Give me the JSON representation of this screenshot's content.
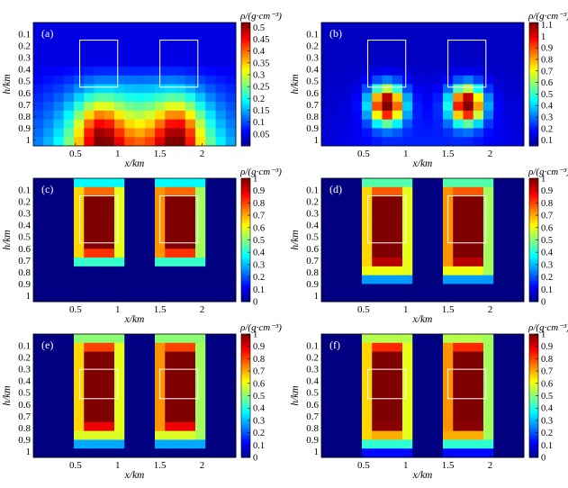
{
  "figure": {
    "colormap": "jet",
    "background": "#ffffff",
    "box_color": "#ffffff"
  },
  "chart_data": [
    {
      "panel": "(a)",
      "type": "heatmap",
      "xlabel": "x/km",
      "ylabel": "h/km",
      "colorbar_label": "ρ/(g·cm⁻³)",
      "x_ticks": [
        0.5,
        1,
        1.5,
        2
      ],
      "y_ticks": [
        0.1,
        0.2,
        0.3,
        0.4,
        0.5,
        0.6,
        0.7,
        0.8,
        0.9,
        1
      ],
      "clim": [
        0,
        0.52
      ],
      "colorbar_ticks": [
        0.05,
        0.1,
        0.15,
        0.2,
        0.25,
        0.3,
        0.35,
        0.4,
        0.45,
        0.5
      ],
      "grid": {
        "x_range": [
          0,
          2.4
        ],
        "y_range": [
          0,
          1.05
        ],
        "nx": 20,
        "ny": 14,
        "model": "smooth",
        "p": 0.22,
        "radius_x": 0.28,
        "radius_y": 0.3,
        "center_y": 0.95,
        "base": 0.05,
        "depth_ramp": 0.5
      },
      "source_boxes": [
        {
          "x": [
            0.55,
            1.0
          ],
          "y": [
            0.15,
            0.55
          ]
        },
        {
          "x": [
            1.5,
            1.95
          ],
          "y": [
            0.15,
            0.55
          ]
        }
      ]
    },
    {
      "panel": "(b)",
      "type": "heatmap",
      "xlabel": "x/km",
      "ylabel": "h/km",
      "colorbar_label": "ρ/(g·cm⁻³)",
      "x_ticks": [
        0.5,
        1,
        1.5,
        2
      ],
      "y_ticks": [
        0.1,
        0.2,
        0.3,
        0.4,
        0.5,
        0.6,
        0.7,
        0.8,
        0.9,
        1
      ],
      "clim": [
        0.05,
        1.12
      ],
      "colorbar_ticks": [
        0.1,
        0.2,
        0.3,
        0.4,
        0.5,
        0.6,
        0.7,
        0.8,
        0.9,
        1,
        1.1
      ],
      "grid": {
        "x_range": [
          0,
          2.4
        ],
        "y_range": [
          0,
          1.05
        ],
        "nx": 20,
        "ny": 14,
        "model": "smooth",
        "p": 1.05,
        "radius_x": 0.2,
        "radius_y": 0.16,
        "center_y": 0.7,
        "base": 0.12,
        "depth_ramp": 0.25
      },
      "source_boxes": [
        {
          "x": [
            0.55,
            1.0
          ],
          "y": [
            0.15,
            0.55
          ]
        },
        {
          "x": [
            1.5,
            1.95
          ],
          "y": [
            0.15,
            0.55
          ]
        }
      ]
    },
    {
      "panel": "(c)",
      "type": "heatmap",
      "xlabel": "x/km",
      "ylabel": "h/km",
      "colorbar_label": "ρ/(g·cm⁻³)",
      "x_ticks": [
        0.5,
        1,
        1.5,
        2
      ],
      "y_ticks": [
        0.1,
        0.2,
        0.3,
        0.4,
        0.5,
        0.6,
        0.7,
        0.8,
        0.9,
        1
      ],
      "clim": [
        0,
        1
      ],
      "colorbar_ticks": [
        0,
        0.1,
        0.2,
        0.3,
        0.4,
        0.5,
        0.6,
        0.7,
        0.8,
        0.9,
        1
      ],
      "grid": {
        "x_range": [
          0,
          2.4
        ],
        "y_range": [
          0,
          1.05
        ],
        "nx": 20,
        "ny": 14,
        "model": "compact",
        "p": 1,
        "radius_x": 0.3,
        "radius_y": 0.3,
        "center_y": 0.38,
        "base": 0.0,
        "depth_ramp": 0
      },
      "source_boxes": [
        {
          "x": [
            0.55,
            1.0
          ],
          "y": [
            0.15,
            0.55
          ]
        },
        {
          "x": [
            1.5,
            1.95
          ],
          "y": [
            0.15,
            0.55
          ]
        }
      ]
    },
    {
      "panel": "(d)",
      "type": "heatmap",
      "xlabel": "x/km",
      "ylabel": "h/km",
      "colorbar_label": "ρ/(g·cm⁻³)",
      "x_ticks": [
        0.5,
        1,
        1.5,
        2
      ],
      "y_ticks": [
        0.1,
        0.2,
        0.3,
        0.4,
        0.5,
        0.6,
        0.7,
        0.8,
        0.9,
        1
      ],
      "clim": [
        0,
        1
      ],
      "colorbar_ticks": [
        0,
        0.1,
        0.2,
        0.3,
        0.4,
        0.5,
        0.6,
        0.7,
        0.8,
        0.9,
        1
      ],
      "grid": {
        "x_range": [
          0,
          2.4
        ],
        "y_range": [
          0,
          1.05
        ],
        "nx": 20,
        "ny": 14,
        "model": "compact",
        "p": 1,
        "radius_x": 0.3,
        "radius_y": 0.36,
        "center_y": 0.43,
        "base": 0.0,
        "depth_ramp": 0
      },
      "source_boxes": [
        {
          "x": [
            0.55,
            1.0
          ],
          "y": [
            0.15,
            0.55
          ]
        },
        {
          "x": [
            1.5,
            1.95
          ],
          "y": [
            0.15,
            0.55
          ]
        }
      ]
    },
    {
      "panel": "(e)",
      "type": "heatmap",
      "xlabel": "x/km",
      "ylabel": "h/km",
      "colorbar_label": "ρ/(g·cm⁻³)",
      "x_ticks": [
        0.5,
        1,
        1.5,
        2
      ],
      "y_ticks": [
        0.1,
        0.2,
        0.3,
        0.4,
        0.5,
        0.6,
        0.7,
        0.8,
        0.9,
        1
      ],
      "clim": [
        0,
        1
      ],
      "colorbar_ticks": [
        0,
        0.1,
        0.2,
        0.3,
        0.4,
        0.5,
        0.6,
        0.7,
        0.8,
        0.9,
        1
      ],
      "grid": {
        "x_range": [
          0,
          2.4
        ],
        "y_range": [
          0,
          1.05
        ],
        "nx": 20,
        "ny": 14,
        "model": "compact",
        "p": 1,
        "radius_x": 0.3,
        "radius_y": 0.4,
        "center_y": 0.46,
        "base": 0.0,
        "depth_ramp": 0
      },
      "source_boxes": [
        {
          "x": [
            0.55,
            1.0
          ],
          "y": [
            0.3,
            0.55
          ]
        },
        {
          "x": [
            1.5,
            1.95
          ],
          "y": [
            0.3,
            0.55
          ]
        }
      ]
    },
    {
      "panel": "(f)",
      "type": "heatmap",
      "xlabel": "x/km",
      "ylabel": "h/km",
      "colorbar_label": "ρ/(g·cm⁻³)",
      "x_ticks": [
        0.5,
        1,
        1.5,
        2
      ],
      "y_ticks": [
        0.1,
        0.2,
        0.3,
        0.4,
        0.5,
        0.6,
        0.7,
        0.8,
        0.9,
        1
      ],
      "clim": [
        0,
        1
      ],
      "colorbar_ticks": [
        0,
        0.1,
        0.2,
        0.3,
        0.4,
        0.5,
        0.6,
        0.7,
        0.8,
        0.9,
        1
      ],
      "grid": {
        "x_range": [
          0,
          2.4
        ],
        "y_range": [
          0,
          1.05
        ],
        "nx": 20,
        "ny": 14,
        "model": "compact",
        "p": 1,
        "radius_x": 0.3,
        "radius_y": 0.42,
        "center_y": 0.47,
        "base": 0.0,
        "depth_ramp": 0
      },
      "source_boxes": [
        {
          "x": [
            0.55,
            1.0
          ],
          "y": [
            0.3,
            0.55
          ]
        },
        {
          "x": [
            1.5,
            1.95
          ],
          "y": [
            0.3,
            0.55
          ]
        }
      ]
    }
  ]
}
